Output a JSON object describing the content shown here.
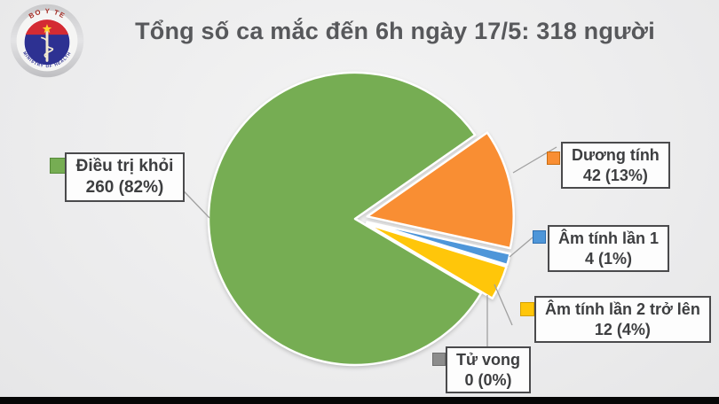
{
  "header": {
    "title": "Tổng số ca mắc đến 6h ngày 17/5: 318 người"
  },
  "logo": {
    "top_text": "BO Y TE",
    "bottom_text": "MINISTRY OF HEALTH"
  },
  "colors": {
    "background": "#EFEFEF",
    "title_text": "#57585B",
    "callout_border": "#4A4A4C",
    "leader_line": "#A0A0A0",
    "bottom_bar": "#000000"
  },
  "chart_data": {
    "type": "pie",
    "title": "Tổng số ca mắc đến 6h ngày 17/5: 318 người",
    "total": 318,
    "unit": "người",
    "date_label": "6h ngày 17/5",
    "start_angle_deg": 35,
    "direction": "clockwise",
    "legend_position": "callouts",
    "slices": [
      {
        "label": "Dương tính",
        "value": 42,
        "pct": 13,
        "display": "42 (13%)",
        "color": "#F98E33",
        "exploded": true
      },
      {
        "label": "Âm tính lần 1",
        "value": 4,
        "pct": 1,
        "display": "4 (1%)",
        "color": "#4E96D9",
        "exploded": true
      },
      {
        "label": "Âm tính lần 2 trở lên",
        "value": 12,
        "pct": 4,
        "display": "12 (4%)",
        "color": "#FFC60A",
        "exploded": true
      },
      {
        "label": "Tử vong",
        "value": 0,
        "pct": 0,
        "display": "0 (0%)",
        "color": "#8C8C8C",
        "exploded": false
      },
      {
        "label": "Điều trị khỏi",
        "value": 260,
        "pct": 82,
        "display": "260 (82%)",
        "color": "#76AD53",
        "exploded": false
      }
    ]
  }
}
